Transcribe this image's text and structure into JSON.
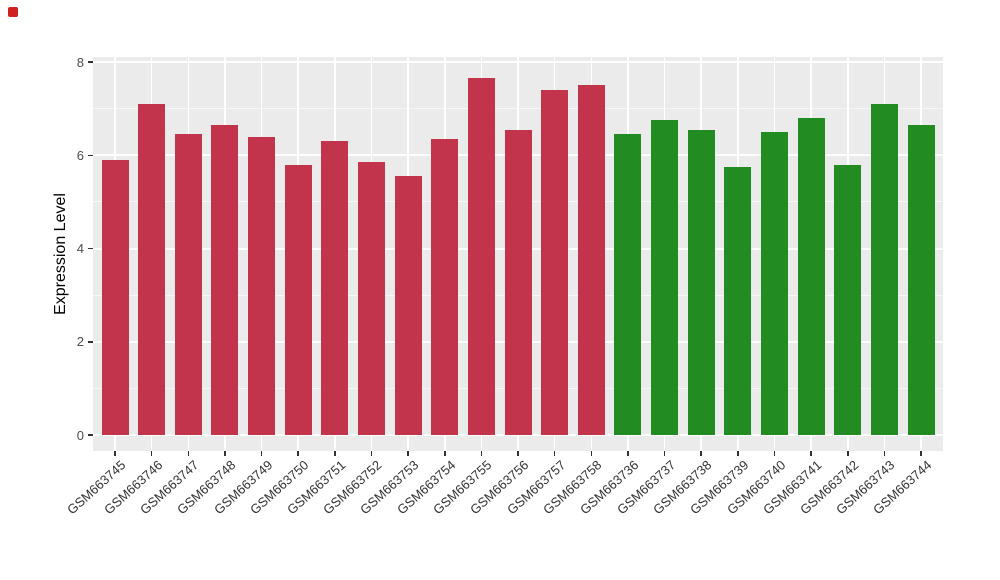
{
  "page": {
    "background": "#ffffff",
    "corner_marker_color": "#d02020"
  },
  "chart_data": {
    "type": "bar",
    "title": "",
    "xlabel": "",
    "ylabel": "Expression Level",
    "ylim": [
      0,
      8
    ],
    "yticks": [
      0,
      2,
      4,
      6,
      8
    ],
    "y_minor_ticks": [
      1,
      3,
      5,
      7
    ],
    "grid": true,
    "legend": "none",
    "panel_background": "#EBEBEB",
    "gridline_color": "#FFFFFF",
    "tick_color": "#333333",
    "categories": [
      "GSM663745",
      "GSM663746",
      "GSM663747",
      "GSM663748",
      "GSM663749",
      "GSM663750",
      "GSM663751",
      "GSM663752",
      "GSM663753",
      "GSM663754",
      "GSM663755",
      "GSM663756",
      "GSM663757",
      "GSM663758",
      "GSM663736",
      "GSM663737",
      "GSM663738",
      "GSM663739",
      "GSM663740",
      "GSM663741",
      "GSM663742",
      "GSM663743",
      "GSM663744"
    ],
    "values": [
      5.9,
      7.1,
      6.45,
      6.65,
      6.4,
      5.8,
      6.3,
      5.85,
      5.55,
      6.35,
      7.65,
      6.55,
      7.4,
      7.5,
      6.45,
      6.75,
      6.55,
      5.75,
      6.5,
      6.8,
      5.8,
      7.1,
      6.65
    ],
    "bar_groups": [
      0,
      0,
      0,
      0,
      0,
      0,
      0,
      0,
      0,
      0,
      0,
      0,
      0,
      0,
      1,
      1,
      1,
      1,
      1,
      1,
      1,
      1,
      1
    ],
    "groups": [
      {
        "name": "group-red",
        "color": "#C2334C",
        "samples": "GSM663745-GSM663758"
      },
      {
        "name": "group-green",
        "color": "#228B22",
        "samples": "GSM663736-GSM663744"
      }
    ]
  }
}
